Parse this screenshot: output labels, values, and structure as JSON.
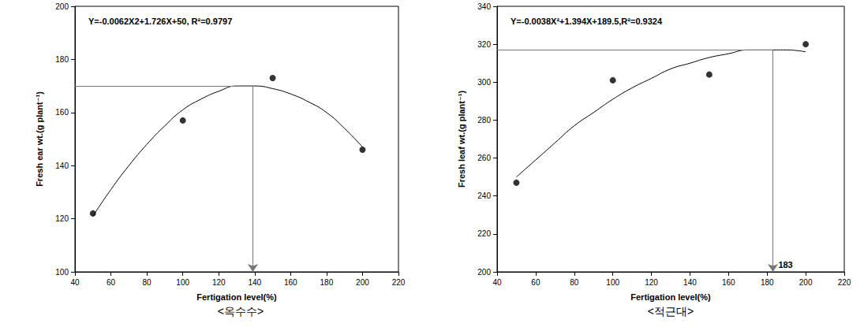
{
  "chart_data": [
    {
      "type": "scatter",
      "title": "<옥수수>",
      "annotation": "Y=-0.0062X2+1.726X+50, R²=0.9797",
      "xlabel": "Fertigation level(%)",
      "ylabel": "Fresh ear wt.(g plant⁻¹)",
      "x": [
        50,
        100,
        150,
        200
      ],
      "values": [
        122,
        157,
        173,
        146
      ],
      "fit": {
        "x": [
          50,
          60,
          70,
          80,
          90,
          100,
          110,
          120,
          130,
          140,
          150,
          160,
          170,
          180,
          190,
          200
        ],
        "values": [
          121,
          131,
          140,
          148,
          155,
          161,
          165,
          168,
          170,
          170,
          169,
          167,
          164,
          160,
          154,
          147
        ]
      },
      "optimum": {
        "x": 139,
        "y": 170
      },
      "xlim": [
        40,
        220
      ],
      "xticks": [
        40,
        60,
        80,
        100,
        120,
        140,
        160,
        180,
        200,
        220
      ],
      "ylim": [
        100,
        200
      ],
      "yticks": [
        100,
        120,
        140,
        160,
        180,
        200
      ],
      "grid": false,
      "color": "#000000"
    },
    {
      "type": "scatter",
      "title": "<적근대>",
      "annotation": "Y=-0.0038X²+1.394X+189.5,R²=0.9324",
      "xlabel": "Fertigation level(%)",
      "ylabel": "Fresh leaf wt.(g plant⁻¹)",
      "x": [
        50,
        100,
        150,
        200
      ],
      "values": [
        247,
        301,
        304,
        320
      ],
      "fit": {
        "x": [
          50,
          60,
          70,
          80,
          90,
          100,
          110,
          120,
          130,
          140,
          150,
          160,
          170,
          180,
          190,
          200
        ],
        "values": [
          250,
          259,
          268,
          277,
          284,
          291,
          297,
          302,
          307,
          310,
          313,
          315,
          317,
          317,
          317,
          316
        ]
      },
      "optimum": {
        "x": 183,
        "y": 317,
        "label": "183"
      },
      "xlim": [
        40,
        220
      ],
      "xticks": [
        40,
        60,
        80,
        100,
        120,
        140,
        160,
        180,
        200,
        220
      ],
      "ylim": [
        200,
        340
      ],
      "yticks": [
        200,
        220,
        240,
        260,
        280,
        300,
        320,
        340
      ],
      "grid": false,
      "color": "#000000"
    }
  ]
}
